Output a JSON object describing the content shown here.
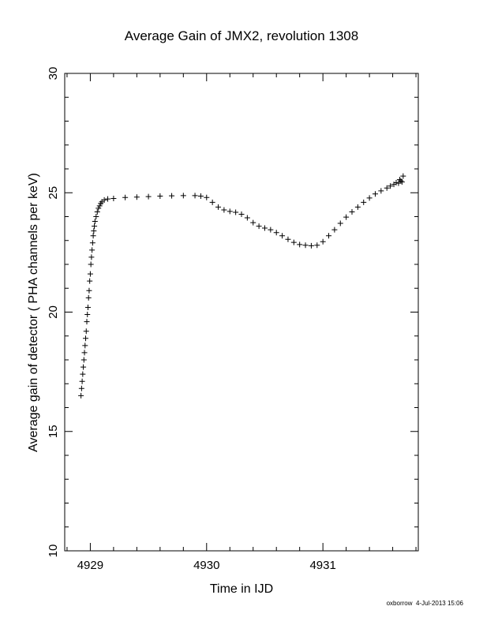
{
  "chart_data": {
    "type": "scatter",
    "title": "Average Gain of JMX2, revolution 1308",
    "xlabel": "Time in IJD",
    "ylabel": "Average gain of detector ( PHA channels per keV)",
    "xlim": [
      4928.78,
      4931.82
    ],
    "ylim": [
      10,
      30
    ],
    "xticks": [
      4929,
      4930,
      4931
    ],
    "yticks": [
      10,
      15,
      20,
      25,
      30
    ],
    "marker": "plus",
    "color": "#000000",
    "grid": false,
    "legend": "none",
    "points": [
      {
        "x": 4928.92,
        "y": 16.5
      },
      {
        "x": 4928.925,
        "y": 16.8
      },
      {
        "x": 4928.93,
        "y": 17.1
      },
      {
        "x": 4928.935,
        "y": 17.4
      },
      {
        "x": 4928.94,
        "y": 17.7
      },
      {
        "x": 4928.945,
        "y": 18.0
      },
      {
        "x": 4928.95,
        "y": 18.3
      },
      {
        "x": 4928.955,
        "y": 18.6
      },
      {
        "x": 4928.96,
        "y": 18.9
      },
      {
        "x": 4928.965,
        "y": 19.2
      },
      {
        "x": 4928.97,
        "y": 19.6
      },
      {
        "x": 4928.975,
        "y": 19.9
      },
      {
        "x": 4928.98,
        "y": 20.2
      },
      {
        "x": 4928.985,
        "y": 20.6
      },
      {
        "x": 4928.99,
        "y": 20.9
      },
      {
        "x": 4928.995,
        "y": 21.3
      },
      {
        "x": 4929.0,
        "y": 21.6
      },
      {
        "x": 4929.005,
        "y": 22.0
      },
      {
        "x": 4929.01,
        "y": 22.3
      },
      {
        "x": 4929.015,
        "y": 22.6
      },
      {
        "x": 4929.02,
        "y": 22.9
      },
      {
        "x": 4929.025,
        "y": 23.2
      },
      {
        "x": 4929.03,
        "y": 23.4
      },
      {
        "x": 4929.035,
        "y": 23.6
      },
      {
        "x": 4929.04,
        "y": 23.8
      },
      {
        "x": 4929.05,
        "y": 24.0
      },
      {
        "x": 4929.06,
        "y": 24.2
      },
      {
        "x": 4929.07,
        "y": 24.35
      },
      {
        "x": 4929.08,
        "y": 24.45
      },
      {
        "x": 4929.09,
        "y": 24.55
      },
      {
        "x": 4929.1,
        "y": 24.62
      },
      {
        "x": 4929.12,
        "y": 24.7
      },
      {
        "x": 4929.15,
        "y": 24.74
      },
      {
        "x": 4929.2,
        "y": 24.76
      },
      {
        "x": 4929.3,
        "y": 24.8
      },
      {
        "x": 4929.4,
        "y": 24.82
      },
      {
        "x": 4929.5,
        "y": 24.84
      },
      {
        "x": 4929.6,
        "y": 24.86
      },
      {
        "x": 4929.7,
        "y": 24.87
      },
      {
        "x": 4929.8,
        "y": 24.88
      },
      {
        "x": 4929.9,
        "y": 24.88
      },
      {
        "x": 4929.95,
        "y": 24.86
      },
      {
        "x": 4930.0,
        "y": 24.8
      },
      {
        "x": 4930.05,
        "y": 24.6
      },
      {
        "x": 4930.1,
        "y": 24.4
      },
      {
        "x": 4930.15,
        "y": 24.28
      },
      {
        "x": 4930.2,
        "y": 24.22
      },
      {
        "x": 4930.25,
        "y": 24.18
      },
      {
        "x": 4930.3,
        "y": 24.1
      },
      {
        "x": 4930.35,
        "y": 23.95
      },
      {
        "x": 4930.4,
        "y": 23.75
      },
      {
        "x": 4930.45,
        "y": 23.6
      },
      {
        "x": 4930.5,
        "y": 23.52
      },
      {
        "x": 4930.55,
        "y": 23.45
      },
      {
        "x": 4930.6,
        "y": 23.33
      },
      {
        "x": 4930.65,
        "y": 23.2
      },
      {
        "x": 4930.7,
        "y": 23.05
      },
      {
        "x": 4930.75,
        "y": 22.92
      },
      {
        "x": 4930.8,
        "y": 22.83
      },
      {
        "x": 4930.85,
        "y": 22.8
      },
      {
        "x": 4930.9,
        "y": 22.78
      },
      {
        "x": 4930.95,
        "y": 22.8
      },
      {
        "x": 4931.0,
        "y": 22.95
      },
      {
        "x": 4931.05,
        "y": 23.2
      },
      {
        "x": 4931.1,
        "y": 23.45
      },
      {
        "x": 4931.15,
        "y": 23.72
      },
      {
        "x": 4931.2,
        "y": 23.98
      },
      {
        "x": 4931.25,
        "y": 24.2
      },
      {
        "x": 4931.3,
        "y": 24.4
      },
      {
        "x": 4931.35,
        "y": 24.6
      },
      {
        "x": 4931.4,
        "y": 24.78
      },
      {
        "x": 4931.45,
        "y": 24.95
      },
      {
        "x": 4931.5,
        "y": 25.08
      },
      {
        "x": 4931.55,
        "y": 25.2
      },
      {
        "x": 4931.58,
        "y": 25.28
      },
      {
        "x": 4931.61,
        "y": 25.35
      },
      {
        "x": 4931.63,
        "y": 25.42
      },
      {
        "x": 4931.65,
        "y": 25.4
      },
      {
        "x": 4931.66,
        "y": 25.55
      },
      {
        "x": 4931.67,
        "y": 25.5
      },
      {
        "x": 4931.68,
        "y": 25.45
      },
      {
        "x": 4931.69,
        "y": 25.7
      }
    ]
  },
  "footer": {
    "user": "oxborrow",
    "timestamp": "4-Jul-2013 15:06"
  }
}
